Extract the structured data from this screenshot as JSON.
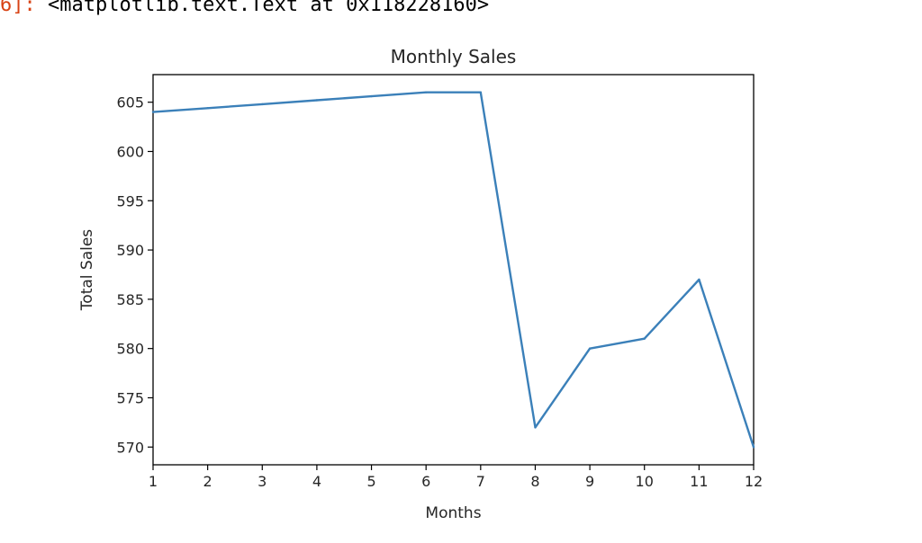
{
  "output_cell": {
    "prompt": "6]:",
    "text": "<matplotlib.text.Text at 0x118228160>",
    "prompt_color": "#d84315"
  },
  "chart_data": {
    "type": "line",
    "title": "Monthly Sales",
    "xlabel": "Months",
    "ylabel": "Total Sales",
    "x": [
      1,
      2,
      3,
      4,
      5,
      6,
      7,
      8,
      9,
      10,
      11,
      12
    ],
    "series": [
      {
        "values": [
          604,
          604.4,
          604.8,
          605.2,
          605.6,
          606,
          606,
          572,
          580,
          581,
          587,
          570
        ],
        "color": "#3b80b9"
      }
    ],
    "xticks": [
      "1",
      "2",
      "3",
      "4",
      "5",
      "6",
      "7",
      "8",
      "9",
      "10",
      "11",
      "12"
    ],
    "yticks": [
      "570",
      "575",
      "580",
      "585",
      "590",
      "595",
      "600",
      "605"
    ],
    "ytick_values": [
      570,
      575,
      580,
      585,
      590,
      595,
      600,
      605
    ],
    "xlim": [
      1,
      12
    ],
    "ylim": [
      568.2,
      607.8
    ],
    "grid": false,
    "legend": false
  }
}
